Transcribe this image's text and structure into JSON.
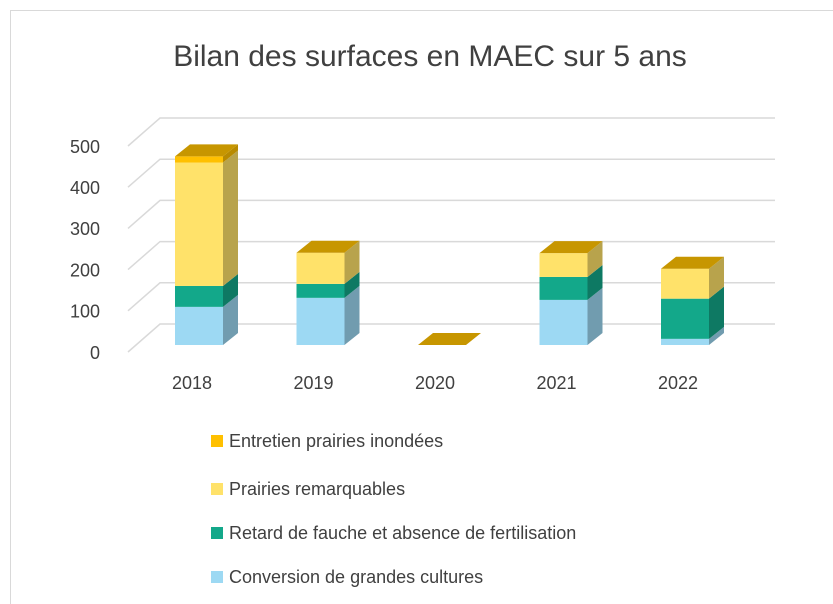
{
  "chart_data": {
    "type": "bar3d_stacked",
    "title": "Bilan des surfaces en MAEC sur 5 ans",
    "categories": [
      "2018",
      "2019",
      "2020",
      "2021",
      "2022"
    ],
    "series": [
      {
        "name": "Conversion de grandes cultures",
        "color": "#9dd9f3",
        "values": [
          93,
          115,
          0,
          110,
          15
        ]
      },
      {
        "name": "Retard de fauche et absence de fertilisation",
        "color": "#13a88a",
        "values": [
          51,
          34,
          0,
          56,
          98
        ]
      },
      {
        "name": "Prairies remarquables",
        "color": "#ffe26a",
        "values": [
          301,
          76,
          0,
          58,
          73
        ]
      },
      {
        "name": "Entretien prairies inondées",
        "color": "#ffc000",
        "values": [
          15,
          0,
          0,
          0,
          0
        ]
      }
    ],
    "ylim": [
      0,
      500
    ],
    "yticks": [
      0,
      100,
      200,
      300,
      400,
      500
    ],
    "grid": true
  }
}
